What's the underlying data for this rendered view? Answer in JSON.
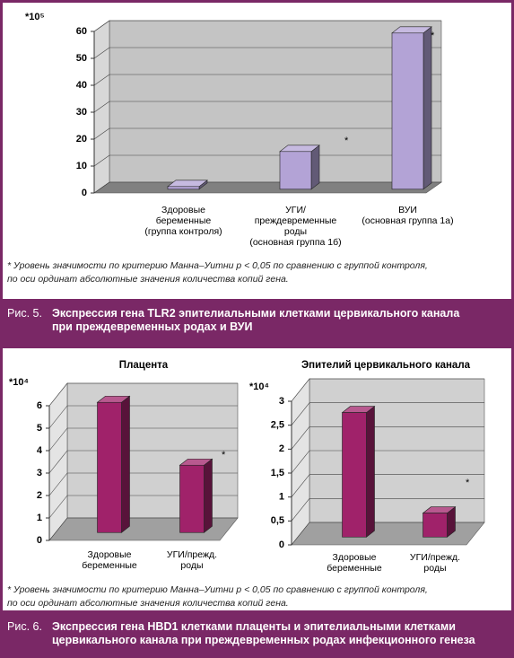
{
  "chart_data": [
    {
      "type": "bar",
      "y_unit": "*10⁵",
      "categories": [
        "Здоровые\nбеременные\n(группа контроля)",
        "УГИ/\nпреждевременные\nроды\n(основная группа 1б)",
        "ВУИ\n(основная группа 1а)"
      ],
      "values": [
        1,
        14,
        58
      ],
      "color": "#b3a3d6",
      "ylim": [
        0,
        60
      ],
      "yticks": [
        0,
        10,
        20,
        30,
        40,
        50,
        60
      ],
      "grid": true,
      "annotations": [
        "*",
        "*"
      ]
    },
    {
      "type": "bar",
      "title": "Плацента",
      "y_unit": "*10⁴",
      "categories": [
        "Здоровые\nбеременные",
        "УГИ/прежд.\nроды"
      ],
      "values": [
        5.8,
        3.0
      ],
      "color": "#a0226a",
      "ylim": [
        0,
        6
      ],
      "yticks": [
        0,
        1,
        2,
        3,
        4,
        5,
        6
      ],
      "grid": true,
      "annotations": [
        "*"
      ]
    },
    {
      "type": "bar",
      "title": "Эпителий цервикального канала",
      "y_unit": "*10⁴",
      "categories": [
        "Здоровые\nбеременные",
        "УГИ/прежд.\nроды"
      ],
      "values": [
        2.6,
        0.5
      ],
      "color": "#a0226a",
      "ylim": [
        0,
        3
      ],
      "yticks": [
        0,
        {
          "value": 0.5,
          "label": "0,5"
        },
        1,
        {
          "value": 1.5,
          "label": "1,5"
        },
        2,
        {
          "value": 2.5,
          "label": "2,5"
        },
        3
      ],
      "grid": true,
      "annotations": [
        "*"
      ]
    }
  ],
  "figures": [
    {
      "footnote": "* Уровень значимости по критерию Манна–Уитни p < 0,05 по сравнению с группой контроля,\nпо оси ординат абсолютные значения количества копий гена.",
      "label": "Рис. 5.",
      "caption": "Экспрессия гена TLR2 эпителиальными клетками цервикального канала\nпри преждевременных родах и ВУИ"
    },
    {
      "footnote": "* Уровень значимости по критерию Манна–Уитни p < 0,05 по сравнению с группой контроля,\nпо оси ординат абсолютные значения количества копий гена.",
      "label": "Рис. 6.",
      "caption": "Экспрессия гена HBD1 клетками плаценты и эпителиальными клетками\nцервикального канала при преждевременных родах инфекционного генеза"
    }
  ]
}
